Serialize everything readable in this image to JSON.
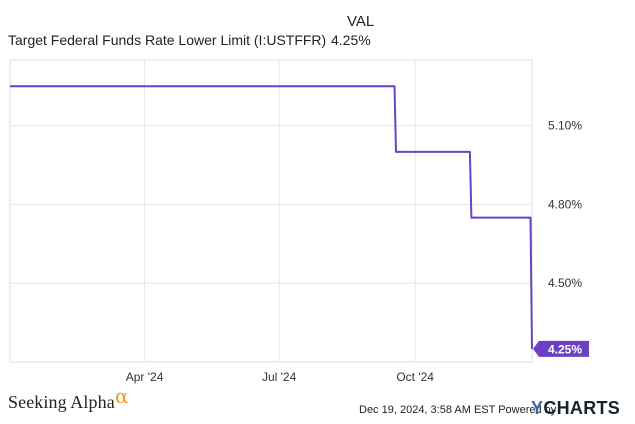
{
  "legend": {
    "header": "VAL",
    "series_name": "Target Federal Funds Rate Lower Limit (I:USTFFR)",
    "series_value": "4.25%"
  },
  "chart_data": {
    "type": "line",
    "title": "",
    "xlabel": "",
    "ylabel": "",
    "x_ticks": [
      "Apr '24",
      "Jul '24",
      "Oct '24"
    ],
    "x_tick_dates": [
      "2024-04-01",
      "2024-07-01",
      "2024-10-01"
    ],
    "xlim": [
      "2024-01-01",
      "2024-12-19"
    ],
    "y_ticks": [
      "4.50%",
      "4.80%",
      "5.10%"
    ],
    "y_tick_values": [
      4.5,
      4.8,
      5.1
    ],
    "ylim": [
      4.2,
      5.35
    ],
    "y_axis_side": "right",
    "grid": true,
    "series": [
      {
        "name": "Target Federal Funds Rate Lower Limit (I:USTFFR)",
        "color": "#6a41c4",
        "x": [
          "2024-01-01",
          "2024-09-17",
          "2024-09-18",
          "2024-11-07",
          "2024-11-08",
          "2024-12-18",
          "2024-12-19"
        ],
        "y": [
          5.25,
          5.25,
          5.0,
          5.0,
          4.75,
          4.75,
          4.25
        ]
      }
    ],
    "end_label": "4.25%",
    "end_label_color": "#6a41c4"
  },
  "footer": {
    "brand": "Seeking Alpha",
    "brand_mark": "α",
    "timestamp": "Dec 19, 2024, 3:58 AM EST Powered by",
    "ycharts_y": "Y",
    "ycharts_rest": "CHARTS"
  }
}
